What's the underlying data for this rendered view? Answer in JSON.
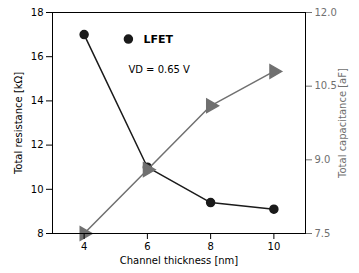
{
  "chart_data": {
    "type": "line",
    "xlabel": "Channel thickness [nm]",
    "ylabel": "Total resistance [kΩ]",
    "y2label": "Total capacitance [aF]",
    "x": [
      4,
      6,
      8,
      10
    ],
    "series": [
      {
        "name": "LFET",
        "color": "#1a1a1a",
        "values": [
          17.0,
          11.0,
          9.4,
          9.1
        ],
        "marker": "circle"
      },
      {
        "color": "#707070",
        "values": [
          7.5,
          8.8,
          10.1,
          10.8
        ],
        "marker": "triangle-right",
        "axis": "y2"
      }
    ],
    "xlim": [
      3,
      11
    ],
    "xticks": [
      4,
      6,
      8,
      10
    ],
    "ylim": [
      8,
      18
    ],
    "yticks": [
      8,
      10,
      12,
      14,
      16,
      18
    ],
    "y2lim": [
      7.5,
      12.0
    ],
    "y2ticks": [
      7.5,
      {
        "value": 9.0,
        "label": "9.0"
      },
      10.5,
      {
        "value": 12.0,
        "label": "12.0"
      }
    ],
    "annotation": "VD = 0.65 V",
    "legend": "top",
    "grid": false
  }
}
